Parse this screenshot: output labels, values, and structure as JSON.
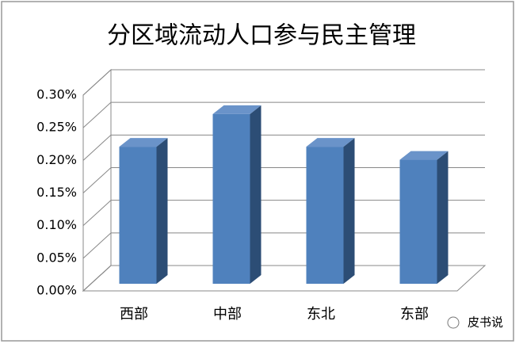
{
  "chart_data": {
    "type": "bar3d",
    "title": "分区域流动人口参与民主管理",
    "categories": [
      "西部",
      "中部",
      "东北",
      "东部"
    ],
    "values": [
      0.21,
      0.26,
      0.21,
      0.19
    ],
    "color": "#4f81bd",
    "ylim": [
      0,
      0.3
    ],
    "yticks": [
      {
        "value": 0,
        "label": "0.00%"
      },
      {
        "value": 0.05,
        "label": "0.05%"
      },
      {
        "value": 0.1,
        "label": "0.10%"
      },
      {
        "value": 0.15,
        "label": "0.15%"
      },
      {
        "value": 0.2,
        "label": "0.20%"
      },
      {
        "value": 0.25,
        "label": "0.25%"
      },
      {
        "value": 0.3,
        "label": "0.30%"
      }
    ],
    "grid": true
  },
  "watermark": "皮书说"
}
